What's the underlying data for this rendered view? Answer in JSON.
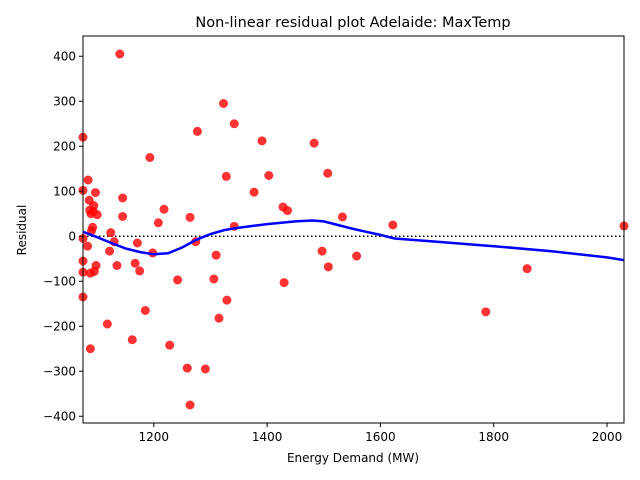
{
  "chart_data": {
    "type": "scatter",
    "title": "Non-linear residual plot Adelaide: MaxTemp",
    "xlabel": "Energy Demand (MW)",
    "ylabel": "Residual",
    "xlim": [
      1075,
      2030
    ],
    "ylim": [
      -415,
      445
    ],
    "xticks": [
      1200,
      1400,
      1600,
      1800,
      2000
    ],
    "yticks": [
      400,
      300,
      200,
      100,
      0,
      -100,
      -200,
      -300,
      -400
    ],
    "grid": false,
    "point_color": "#ff0000",
    "line_color": "#0000ff",
    "zero_line_color": "#000000",
    "points": [
      [
        1075,
        220
      ],
      [
        1075,
        102
      ],
      [
        1075,
        -5
      ],
      [
        1075,
        -55
      ],
      [
        1075,
        -80
      ],
      [
        1075,
        -135
      ],
      [
        1083,
        -22
      ],
      [
        1084,
        125
      ],
      [
        1086,
        80
      ],
      [
        1087,
        58
      ],
      [
        1088,
        -82
      ],
      [
        1088,
        -250
      ],
      [
        1089,
        50
      ],
      [
        1090,
        12
      ],
      [
        1092,
        20
      ],
      [
        1093,
        55
      ],
      [
        1094,
        68
      ],
      [
        1095,
        -78
      ],
      [
        1097,
        97
      ],
      [
        1098,
        -65
      ],
      [
        1100,
        48
      ],
      [
        1118,
        -195
      ],
      [
        1122,
        -33
      ],
      [
        1124,
        8
      ],
      [
        1130,
        -12
      ],
      [
        1135,
        -65
      ],
      [
        1140,
        405
      ],
      [
        1145,
        85
      ],
      [
        1145,
        44
      ],
      [
        1162,
        -230
      ],
      [
        1167,
        -60
      ],
      [
        1171,
        -15
      ],
      [
        1175,
        -77
      ],
      [
        1185,
        -165
      ],
      [
        1193,
        175
      ],
      [
        1198,
        -37
      ],
      [
        1208,
        30
      ],
      [
        1218,
        60
      ],
      [
        1228,
        -242
      ],
      [
        1242,
        -97
      ],
      [
        1259,
        -293
      ],
      [
        1264,
        -375
      ],
      [
        1264,
        42
      ],
      [
        1274,
        -12
      ],
      [
        1277,
        233
      ],
      [
        1291,
        -295
      ],
      [
        1306,
        -95
      ],
      [
        1310,
        -42
      ],
      [
        1315,
        -182
      ],
      [
        1323,
        295
      ],
      [
        1328,
        133
      ],
      [
        1329,
        -142
      ],
      [
        1342,
        250
      ],
      [
        1342,
        22
      ],
      [
        1377,
        98
      ],
      [
        1391,
        212
      ],
      [
        1403,
        135
      ],
      [
        1428,
        65
      ],
      [
        1430,
        -103
      ],
      [
        1436,
        57
      ],
      [
        1483,
        207
      ],
      [
        1497,
        -33
      ],
      [
        1507,
        140
      ],
      [
        1508,
        -68
      ],
      [
        1533,
        43
      ],
      [
        1558,
        -44
      ],
      [
        1622,
        25
      ],
      [
        1786,
        -168
      ],
      [
        1859,
        -72
      ],
      [
        2030,
        23
      ]
    ],
    "trend": [
      [
        1075,
        10
      ],
      [
        1100,
        -2
      ],
      [
        1125,
        -15
      ],
      [
        1150,
        -27
      ],
      [
        1175,
        -35
      ],
      [
        1200,
        -40
      ],
      [
        1225,
        -38
      ],
      [
        1250,
        -25
      ],
      [
        1275,
        -8
      ],
      [
        1300,
        5
      ],
      [
        1325,
        14
      ],
      [
        1350,
        19
      ],
      [
        1375,
        23
      ],
      [
        1400,
        27
      ],
      [
        1425,
        30
      ],
      [
        1450,
        33
      ],
      [
        1480,
        35
      ],
      [
        1500,
        33
      ],
      [
        1525,
        25
      ],
      [
        1550,
        17
      ],
      [
        1575,
        10
      ],
      [
        1600,
        3
      ],
      [
        1625,
        -5
      ],
      [
        1700,
        -12
      ],
      [
        1800,
        -22
      ],
      [
        1900,
        -33
      ],
      [
        2000,
        -47
      ],
      [
        2030,
        -53
      ]
    ]
  }
}
